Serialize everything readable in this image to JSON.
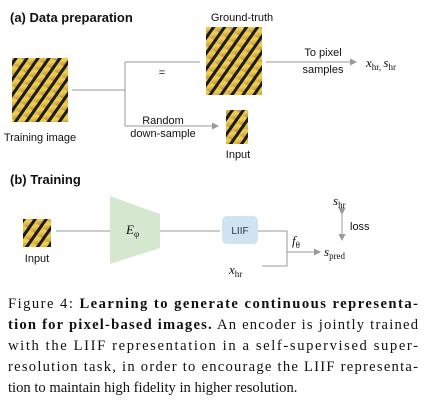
{
  "section_a": {
    "heading": "(a) Data preparation",
    "training_image_label": "Training image",
    "ground_truth_label": "Ground-truth",
    "equals": "=",
    "downsample_label": [
      "Random",
      "down-sample"
    ],
    "input_label": "Input",
    "pixel_label": [
      "To pixel",
      "samples"
    ],
    "output": [
      {
        "base": "x",
        "sub": "hr",
        "after": ", "
      },
      {
        "base": "s",
        "sub": "hr",
        "after": ""
      }
    ]
  },
  "section_b": {
    "heading": "(b) Training",
    "input_label": "Input",
    "encoder": {
      "base": "E",
      "sub": "φ"
    },
    "liif": "LIIF",
    "decoder": {
      "base": "f",
      "sub": "θ"
    },
    "coord": {
      "base": "x",
      "sub": "hr"
    },
    "target": {
      "base": "s",
      "sub": "hr"
    },
    "prediction": {
      "base": "s",
      "sub": "pred"
    },
    "loss": "loss"
  },
  "caption": {
    "label": "Figure 4:",
    "title_lines": [
      "Learning to generate continuous representa-",
      "tion for pixel-based images."
    ],
    "text_lines": [
      "An encoder is jointly trained",
      "with the LIIF representation in a self-supervised super-",
      "resolution task, in order to encourage the LIIF representa-",
      "tion to maintain high fidelity in higher resolution."
    ]
  }
}
